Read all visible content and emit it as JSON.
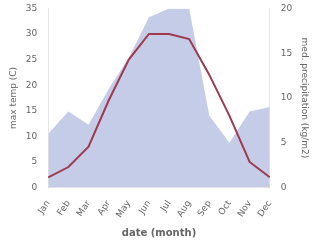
{
  "chart_data": {
    "type": "line",
    "xlabel": "date (month)",
    "ylabel": "max temp (C)",
    "y2label": "med. precipitation (kg/m2)",
    "categories": [
      "Jan",
      "Feb",
      "Mar",
      "Apr",
      "May",
      "Jun",
      "Jul",
      "Aug",
      "Sep",
      "Oct",
      "Nov",
      "Dec"
    ],
    "series": [
      {
        "type": "area",
        "axis": "y2",
        "color": "#c5cce8",
        "values": [
          6,
          8.5,
          7,
          11,
          14.5,
          19,
          20,
          20,
          8,
          5,
          8.5,
          9
        ]
      },
      {
        "type": "line",
        "color": "#9e3a4e",
        "values": [
          2,
          4,
          8,
          17,
          25,
          30,
          30,
          29,
          22,
          14,
          5,
          2
        ]
      }
    ],
    "ylim": [
      0,
      35
    ],
    "yticks": [
      0,
      5,
      10,
      15,
      20,
      25,
      30,
      35
    ],
    "y2lim": [
      0,
      20
    ],
    "y2ticks": [
      0,
      5,
      10,
      15,
      20
    ],
    "grid": false
  }
}
